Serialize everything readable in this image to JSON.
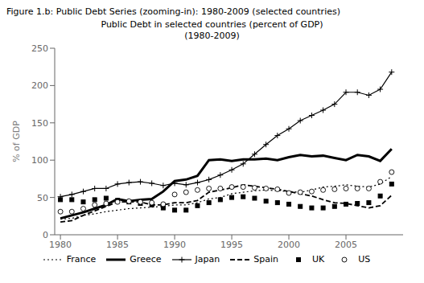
{
  "chart_data": {
    "type": "line",
    "suptitle": "Figure 1.b: Public Debt Series (zooming-in): 1980-2009 (selected countries)",
    "title": "Public Debt in selected countries (percent of GDP)",
    "subtitle": "(1980-2009)",
    "y_label": "% of GDP",
    "x": [
      1980,
      1981,
      1982,
      1983,
      1984,
      1985,
      1986,
      1987,
      1988,
      1989,
      1990,
      1991,
      1992,
      1993,
      1994,
      1995,
      1996,
      1997,
      1998,
      1999,
      2000,
      2001,
      2002,
      2003,
      2004,
      2005,
      2006,
      2007,
      2008,
      2009
    ],
    "xlim": [
      1979.5,
      2010
    ],
    "xticks": [
      1980,
      1985,
      1990,
      1995,
      2000,
      2005
    ],
    "ylim": [
      0,
      250
    ],
    "yticks": [
      0,
      50,
      100,
      150,
      200,
      250
    ],
    "grid": false,
    "legend": "bottom",
    "series": [
      {
        "name": "France",
        "color": "#000000",
        "line_style": "dotted",
        "marker": "none",
        "values": [
          21,
          22,
          26,
          28,
          31,
          33,
          35,
          36,
          37,
          38,
          40,
          40,
          43,
          48,
          50,
          55,
          57,
          59,
          60,
          59,
          58,
          57,
          60,
          64,
          65,
          67,
          65,
          64,
          68,
          78
        ]
      },
      {
        "name": "Greece",
        "color": "#000000",
        "line_style": "solid",
        "marker": "none",
        "values": [
          22,
          26,
          30,
          35,
          40,
          48,
          45,
          47,
          48,
          58,
          72,
          74,
          79,
          100,
          101,
          99,
          101,
          101,
          102,
          100,
          104,
          107,
          105,
          106,
          103,
          100,
          107,
          105,
          99,
          115
        ]
      },
      {
        "name": "Japan",
        "color": "#000000",
        "line_style": "solid",
        "marker": "plus",
        "values": [
          51,
          54,
          58,
          62,
          62,
          68,
          70,
          71,
          69,
          66,
          69,
          67,
          70,
          74,
          80,
          87,
          95,
          108,
          121,
          133,
          142,
          153,
          160,
          167,
          175,
          191,
          191,
          187,
          195,
          218
        ]
      },
      {
        "name": "Spain",
        "color": "#000000",
        "line_style": "dashed",
        "marker": "none",
        "values": [
          17,
          19,
          26,
          32,
          38,
          44,
          44,
          44,
          40,
          40,
          43,
          43,
          46,
          57,
          60,
          63,
          67,
          65,
          63,
          61,
          58,
          55,
          52,
          47,
          43,
          42,
          39,
          36,
          39,
          53
        ]
      },
      {
        "name": "UK",
        "color": "#000000",
        "line_style": "none",
        "marker": "square",
        "values": [
          47,
          47,
          44,
          47,
          49,
          46,
          44,
          42,
          40,
          36,
          33,
          33,
          39,
          43,
          47,
          50,
          51,
          49,
          45,
          43,
          41,
          38,
          36,
          36,
          38,
          41,
          42,
          43,
          52,
          68
        ]
      },
      {
        "name": "US",
        "color": "#000000",
        "line_style": "none",
        "marker": "circle",
        "values": [
          31,
          31,
          35,
          40,
          42,
          44,
          45,
          44,
          43,
          41,
          54,
          57,
          60,
          62,
          62,
          64,
          64,
          63,
          62,
          61,
          56,
          57,
          58,
          60,
          61,
          62,
          62,
          62,
          71,
          84
        ]
      }
    ]
  }
}
